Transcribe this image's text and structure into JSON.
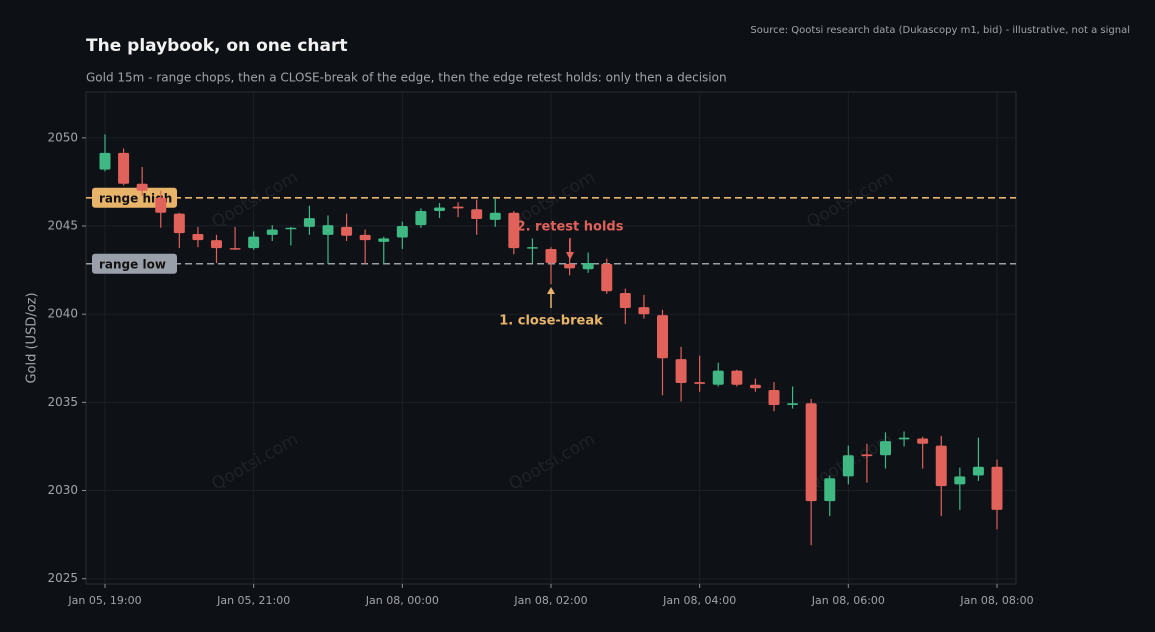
{
  "chart_data": {
    "type": "candlestick",
    "title": "The playbook, on one chart",
    "subtitle": "Gold 15m - range chops, then a CLOSE-break of the edge, then the edge retest holds: only then a decision",
    "source": "Source: Qootsi research data (Dukascopy m1, bid) - illustrative, not a signal",
    "watermark": "Qootsi.com",
    "y_label": "Gold (USD/oz)",
    "categories": [
      "Jan 05, 19:00",
      null,
      null,
      null,
      null,
      null,
      null,
      null,
      "Jan 05, 21:00",
      null,
      null,
      null,
      null,
      null,
      null,
      null,
      "Jan 08, 00:00",
      null,
      null,
      null,
      null,
      null,
      null,
      null,
      "Jan 08, 02:00",
      null,
      null,
      null,
      null,
      null,
      null,
      null,
      "Jan 08, 04:00",
      null,
      null,
      null,
      null,
      null,
      null,
      null,
      "Jan 08, 06:00",
      null,
      null,
      null,
      null,
      null,
      null,
      null,
      "Jan 08, 08:00"
    ],
    "open": [
      2048.2,
      2049.15,
      2047.4,
      2046.6,
      2045.7,
      2044.55,
      2044.2,
      2043.75,
      2043.75,
      2044.5,
      2044.85,
      2044.95,
      2044.5,
      2044.95,
      2044.5,
      2044.1,
      2044.35,
      2045.05,
      2045.85,
      2046.1,
      2045.95,
      2045.35,
      2045.75,
      2043.75,
      2043.7,
      2042.85,
      2042.55,
      2042.85,
      2041.2,
      2040.4,
      2039.95,
      2037.45,
      2036.15,
      2036.0,
      2036.8,
      2036.0,
      2035.7,
      2034.85,
      2034.95,
      2029.4,
      2030.8,
      2032.05,
      2032.0,
      2032.9,
      2032.95,
      2032.55,
      2030.35,
      2030.85,
      2031.35
    ],
    "high": [
      2050.2,
      2049.4,
      2048.35,
      2047.0,
      2045.75,
      2044.95,
      2044.5,
      2044.95,
      2044.7,
      2045.05,
      2044.95,
      2046.15,
      2045.6,
      2045.7,
      2044.8,
      2044.4,
      2045.25,
      2046.0,
      2046.3,
      2046.35,
      2046.5,
      2046.6,
      2045.85,
      2044.3,
      2043.8,
      2044.25,
      2043.5,
      2043.15,
      2041.45,
      2041.1,
      2040.25,
      2038.15,
      2037.65,
      2037.25,
      2036.85,
      2036.35,
      2036.15,
      2035.9,
      2035.2,
      2030.85,
      2032.55,
      2032.65,
      2033.3,
      2033.35,
      2033.05,
      2033.1,
      2031.3,
      2033.0,
      2031.75
    ],
    "low": [
      2048.1,
      2047.3,
      2046.7,
      2044.9,
      2043.75,
      2043.8,
      2042.9,
      2043.65,
      2043.65,
      2044.15,
      2043.9,
      2044.5,
      2042.85,
      2044.15,
      2042.85,
      2042.85,
      2043.7,
      2044.9,
      2045.45,
      2045.5,
      2044.5,
      2044.95,
      2043.4,
      2042.9,
      2041.7,
      2042.2,
      2042.35,
      2041.15,
      2039.45,
      2039.75,
      2035.4,
      2035.05,
      2035.6,
      2035.9,
      2035.9,
      2035.6,
      2034.5,
      2034.65,
      2026.9,
      2028.55,
      2030.35,
      2030.45,
      2031.25,
      2032.5,
      2031.25,
      2028.55,
      2028.9,
      2030.55,
      2027.8
    ],
    "close": [
      2049.15,
      2047.4,
      2047.0,
      2045.75,
      2044.6,
      2044.2,
      2043.75,
      2043.7,
      2044.4,
      2044.8,
      2044.9,
      2045.45,
      2045.05,
      2044.45,
      2044.2,
      2044.3,
      2045.0,
      2045.85,
      2046.05,
      2046.0,
      2045.4,
      2045.75,
      2043.75,
      2043.8,
      2042.9,
      2042.6,
      2042.9,
      2041.3,
      2040.35,
      2040.0,
      2037.5,
      2036.1,
      2036.05,
      2036.8,
      2036.0,
      2035.8,
      2034.85,
      2034.95,
      2029.4,
      2030.7,
      2032.0,
      2031.95,
      2032.8,
      2033.0,
      2032.65,
      2030.25,
      2030.8,
      2031.35,
      2028.9
    ],
    "up_color": "#3fb884",
    "down_color": "#e0625a",
    "ylim": [
      2024.7,
      2052.6
    ],
    "yticks": [
      2025,
      2030,
      2035,
      2040,
      2045,
      2050
    ],
    "grid": true,
    "levels": [
      {
        "label": "range high",
        "value": 2046.6,
        "color": "#e8b46a"
      },
      {
        "label": "range low",
        "value": 2042.86,
        "color": "#9aa0aa"
      }
    ],
    "annotations": [
      {
        "text": "1. close-break",
        "color": "#e8b46a"
      },
      {
        "text": "2. retest holds",
        "color": "#e0625a"
      }
    ]
  }
}
